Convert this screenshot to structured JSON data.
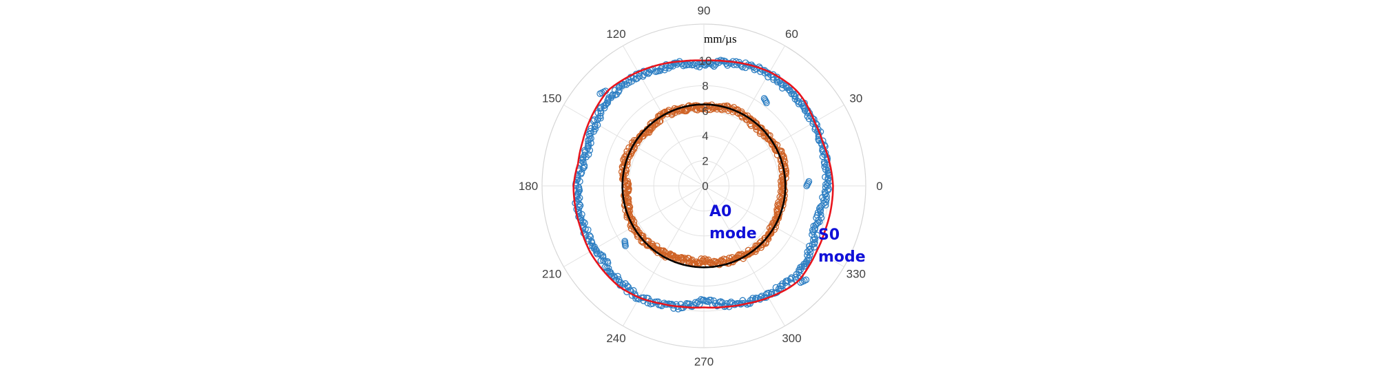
{
  "chart_data": {
    "type": "scatter",
    "coordinate_system": "polar",
    "angle_unit": "degrees",
    "radial_unit": "mm/µs",
    "radial_range": [
      0,
      10
    ],
    "radial_ticks": [
      "0",
      "2",
      "4",
      "6",
      "8",
      "10"
    ],
    "angle_ticks": [
      "0",
      "30",
      "60",
      "90",
      "120",
      "150",
      "180",
      "210",
      "240",
      "270",
      "300",
      "330"
    ],
    "grid": true,
    "legend": "none",
    "annotations": [
      {
        "lines": [
          "A0",
          "mode"
        ],
        "color": "#1010d8"
      },
      {
        "lines": [
          "S0",
          "mode"
        ],
        "color": "#1010d8"
      }
    ],
    "series": [
      {
        "kind": "measured-points",
        "marker": "open-circle",
        "color": "#2e7fc3",
        "theta": [
          0,
          10,
          20,
          30,
          40,
          45,
          50,
          60,
          70,
          80,
          90,
          100,
          110,
          120,
          130,
          135,
          140,
          150,
          160,
          170,
          180,
          190,
          200,
          210,
          220,
          225,
          230,
          240,
          250,
          260,
          270,
          280,
          290,
          300,
          310,
          315,
          320,
          330,
          340,
          350
        ],
        "r": [
          9.8,
          9.9,
          10.0,
          10.1,
          10.2,
          10.3,
          10.2,
          10.3,
          10.2,
          10.0,
          9.6,
          9.9,
          10.0,
          10.2,
          10.3,
          10.3,
          10.2,
          10.0,
          9.7,
          9.8,
          10.1,
          10.2,
          10.1,
          10.0,
          10.0,
          10.1,
          10.2,
          10.3,
          10.1,
          9.8,
          9.2,
          9.6,
          9.9,
          10.0,
          10.2,
          10.4,
          10.2,
          9.9,
          9.5,
          9.6
        ],
        "outliers": [
          {
            "theta": 0,
            "r": 8.2
          },
          {
            "theta": 53,
            "r": 8.3
          },
          {
            "theta": 136,
            "r": 10.9
          },
          {
            "theta": 215,
            "r": 7.7
          },
          {
            "theta": 315,
            "r": 10.9
          }
        ]
      },
      {
        "kind": "measured-points",
        "marker": "open-circle",
        "color": "#cf6326",
        "theta": [
          0,
          10,
          20,
          30,
          40,
          45,
          50,
          60,
          70,
          80,
          90,
          100,
          110,
          120,
          130,
          135,
          140,
          150,
          160,
          170,
          180,
          190,
          200,
          210,
          220,
          225,
          230,
          240,
          250,
          260,
          270,
          280,
          290,
          300,
          310,
          315,
          320,
          330,
          340,
          350
        ],
        "r": [
          6.3,
          6.5,
          6.6,
          6.5,
          6.4,
          6.3,
          6.3,
          6.4,
          6.5,
          6.4,
          6.2,
          6.3,
          6.4,
          6.5,
          6.4,
          6.3,
          6.4,
          6.5,
          6.6,
          6.5,
          6.2,
          6.3,
          6.4,
          6.5,
          6.5,
          6.4,
          6.3,
          6.3,
          6.2,
          6.1,
          6.0,
          6.2,
          6.3,
          6.4,
          6.5,
          6.6,
          6.5,
          6.4,
          6.3,
          6.3
        ]
      },
      {
        "kind": "model-curve",
        "line": "solid",
        "color": "#e8141c",
        "theta": [
          0,
          10,
          20,
          30,
          40,
          45,
          50,
          60,
          70,
          80,
          90,
          100,
          110,
          120,
          130,
          135,
          140,
          150,
          160,
          170,
          180,
          190,
          200,
          210,
          220,
          225,
          230,
          240,
          250,
          260,
          270,
          280,
          290,
          300,
          310,
          315,
          320,
          330,
          340,
          350
        ],
        "r": [
          10.3,
          10.2,
          10.1,
          10.2,
          10.5,
          10.6,
          10.6,
          10.5,
          10.3,
          10.1,
          10.0,
          10.1,
          10.3,
          10.5,
          10.7,
          10.8,
          10.7,
          10.5,
          10.3,
          10.2,
          10.4,
          10.4,
          10.4,
          10.5,
          10.5,
          10.5,
          10.5,
          10.3,
          10.0,
          9.8,
          9.7,
          9.8,
          10.0,
          10.3,
          10.6,
          10.7,
          10.6,
          10.4,
          10.3,
          10.3
        ]
      },
      {
        "kind": "model-curve",
        "line": "solid",
        "color": "#000000",
        "theta": [
          0,
          30,
          60,
          90,
          120,
          150,
          180,
          210,
          240,
          270,
          300,
          330
        ],
        "r": [
          6.5,
          6.5,
          6.5,
          6.5,
          6.5,
          6.5,
          6.5,
          6.5,
          6.5,
          6.5,
          6.5,
          6.5
        ]
      }
    ]
  }
}
